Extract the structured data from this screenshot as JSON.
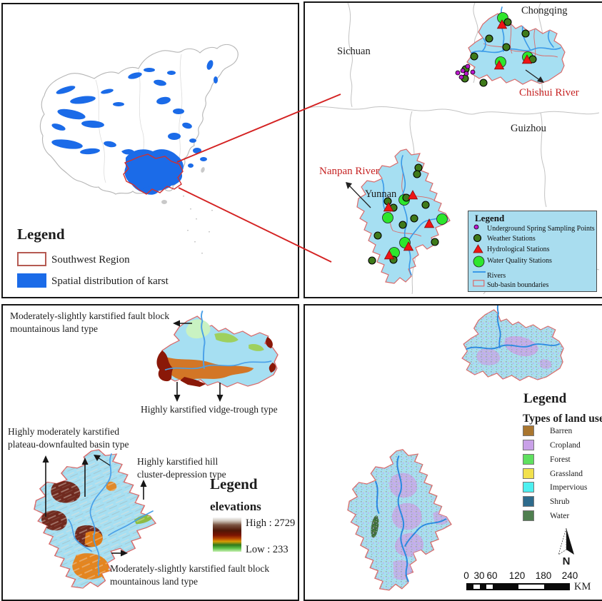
{
  "panel_karst_distribution": {
    "legend": {
      "title": "Legend",
      "items": [
        {
          "label": "Southwest Region",
          "swatch_fill": "#ffffff",
          "swatch_border": "#b55a52"
        },
        {
          "label": "Spatial distribution of karst",
          "swatch_fill": "#1b6be8",
          "swatch_border": "#1b6be8"
        }
      ]
    },
    "karst_color": "#1b6be8",
    "region_outline_color": "#d03030"
  },
  "panel_study_area": {
    "province_labels": [
      {
        "text": "Sichuan"
      },
      {
        "text": "Chongqing"
      },
      {
        "text": "Guizhou"
      },
      {
        "text": "Yunnan"
      }
    ],
    "river_labels": [
      {
        "text": "Chishui River",
        "color": "#c62323"
      },
      {
        "text": "Nanpan River",
        "color": "#c62323"
      }
    ],
    "legend": {
      "title": "Legend",
      "items": [
        {
          "label": "Underground Spring Sampling Points",
          "marker": "spring-point",
          "color": "#bb18cc"
        },
        {
          "label": "Weather Stations",
          "marker": "weather-station",
          "color": "#3f7a1a"
        },
        {
          "label": "Hydrological Stations",
          "marker": "hydrological-station",
          "color": "#ee1515"
        },
        {
          "label": "Water Quality Stations",
          "marker": "water-quality-station",
          "color": "#2de62d"
        },
        {
          "label": "Rivers",
          "marker": "river-line",
          "color": "#3a9ae8"
        },
        {
          "label": "Sub-basin boundaries",
          "marker": "sub-basin-box",
          "color": "#a6dff2"
        }
      ]
    },
    "stations": {
      "water_quality": [
        [
          277,
          21
        ],
        [
          312,
          76
        ],
        [
          274,
          83
        ],
        [
          139,
          276
        ],
        [
          116,
          301
        ],
        [
          192,
          303
        ],
        [
          140,
          336
        ],
        [
          125,
          350
        ]
      ],
      "hydrological": [
        [
          276,
          31
        ],
        [
          311,
          80
        ],
        [
          272,
          88
        ],
        [
          151,
          270
        ],
        [
          117,
          287
        ],
        [
          174,
          310
        ],
        [
          145,
          342
        ],
        [
          118,
          354
        ]
      ],
      "weather": [
        [
          284,
          27
        ],
        [
          309,
          43
        ],
        [
          258,
          50
        ],
        [
          282,
          62
        ],
        [
          319,
          79
        ],
        [
          237,
          75
        ],
        [
          225,
          93
        ],
        [
          224,
          106
        ],
        [
          250,
          112
        ],
        [
          159,
          231
        ],
        [
          157,
          240
        ],
        [
          142,
          273
        ],
        [
          116,
          278
        ],
        [
          124,
          287
        ],
        [
          169,
          283
        ],
        [
          153,
          302
        ],
        [
          137,
          311
        ],
        [
          102,
          326
        ],
        [
          182,
          335
        ],
        [
          94,
          361
        ],
        [
          124,
          360
        ]
      ],
      "spring": [
        [
          228,
          89
        ],
        [
          221,
          95
        ],
        [
          214,
          98
        ],
        [
          226,
          99
        ],
        [
          235,
          97
        ],
        [
          219,
          104
        ]
      ]
    }
  },
  "panel_karst_types": {
    "annotations": {
      "fault_block_top": {
        "line1": "Moderately-slightly karstified fault block",
        "line2": "mountainous land type"
      },
      "vidge_trough": {
        "line1": "Highly karstified vidge-trough type"
      },
      "plateau_basin": {
        "line1": "Highly moderately karstified",
        "line2": "plateau-downfaulted basin type"
      },
      "hill_cluster": {
        "line1": "Highly karstified hill",
        "line2": "cluster-depression type"
      },
      "fault_block_bottom": {
        "line1": "Moderately-slightly karstified fault block",
        "line2": "mountainous land type"
      }
    },
    "legend": {
      "title": "Legend",
      "subtitle": "elevations",
      "high_label": "High : 2729",
      "low_label": "Low : 233"
    }
  },
  "panel_land_use": {
    "legend": {
      "title": "Legend",
      "subtitle": "Types of land use",
      "items": [
        {
          "label": "Barren",
          "color": "#a9762f"
        },
        {
          "label": "Cropland",
          "color": "#c9a1e8"
        },
        {
          "label": "Forest",
          "color": "#5fe05f"
        },
        {
          "label": "Grassland",
          "color": "#f2e14d"
        },
        {
          "label": "Impervious",
          "color": "#4df0f0"
        },
        {
          "label": "Shrub",
          "color": "#2e6b8c"
        },
        {
          "label": "Water",
          "color": "#4f7f4f"
        }
      ]
    },
    "north_arrow_label": "N",
    "scale_bar": {
      "tick_labels": [
        "0",
        "30",
        "60",
        "120",
        "180",
        "240"
      ],
      "unit": "KM"
    }
  }
}
